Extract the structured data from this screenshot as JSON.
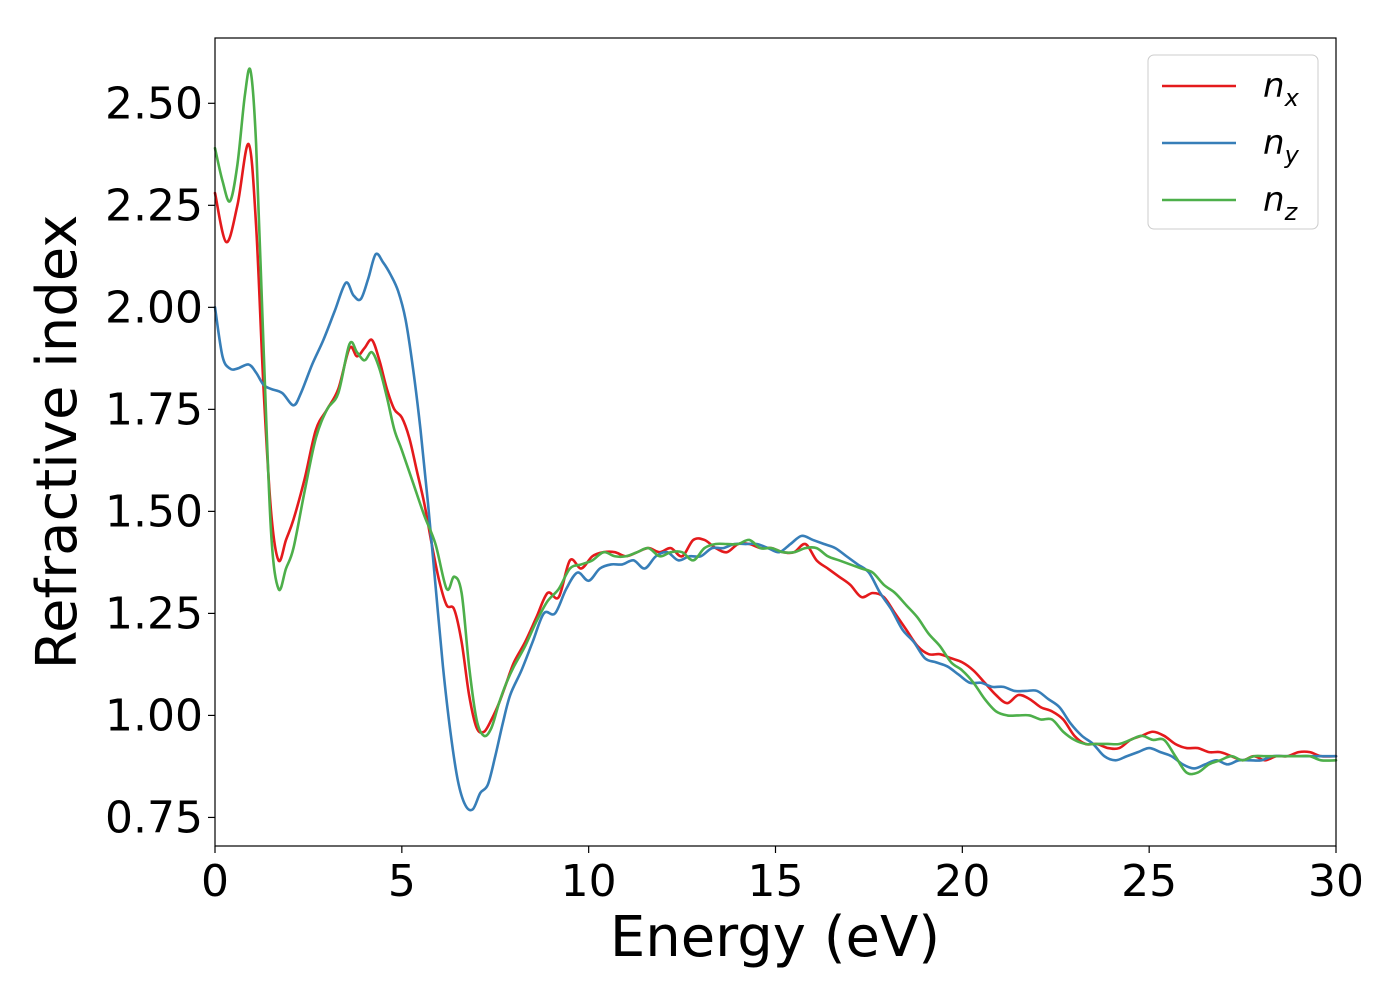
{
  "chart_data": {
    "type": "line",
    "xlabel": "Energy (eV)",
    "ylabel": "Refractive index",
    "xlim": [
      0,
      30
    ],
    "ylim": [
      0.68,
      2.66
    ],
    "xticks": [
      0,
      5,
      10,
      15,
      20,
      25,
      30
    ],
    "xtick_labels": [
      "0",
      "5",
      "10",
      "15",
      "20",
      "25",
      "30"
    ],
    "yticks": [
      0.75,
      1.0,
      1.25,
      1.5,
      1.75,
      2.0,
      2.25,
      2.5
    ],
    "ytick_labels": [
      "0.75",
      "1.00",
      "1.25",
      "1.50",
      "1.75",
      "2.00",
      "2.25",
      "2.50"
    ],
    "grid": false,
    "legend_position": "top-right",
    "series": [
      {
        "name": "n",
        "subscript": "x",
        "color": "#e41a1c",
        "x": [
          0,
          0.3,
          0.6,
          0.9,
          1.1,
          1.3,
          1.5,
          1.7,
          1.9,
          2.1,
          2.4,
          2.7,
          3.0,
          3.3,
          3.6,
          3.8,
          4.0,
          4.2,
          4.4,
          4.6,
          4.8,
          5.0,
          5.2,
          5.4,
          5.6,
          5.8,
          6.0,
          6.2,
          6.4,
          6.6,
          6.8,
          7.0,
          7.2,
          7.4,
          7.6,
          7.8,
          8.0,
          8.3,
          8.6,
          8.9,
          9.2,
          9.5,
          9.8,
          10.1,
          10.4,
          10.7,
          11.0,
          11.3,
          11.6,
          11.9,
          12.2,
          12.5,
          12.8,
          13.1,
          13.4,
          13.7,
          14.0,
          14.3,
          14.6,
          14.9,
          15.2,
          15.5,
          15.8,
          16.1,
          16.4,
          16.7,
          17.0,
          17.3,
          17.6,
          17.9,
          18.2,
          18.5,
          18.8,
          19.1,
          19.4,
          19.7,
          20.0,
          20.3,
          20.6,
          20.9,
          21.2,
          21.5,
          21.8,
          22.1,
          22.4,
          22.7,
          23.0,
          23.3,
          23.6,
          23.9,
          24.2,
          24.5,
          24.8,
          25.1,
          25.4,
          25.7,
          26.0,
          26.3,
          26.6,
          26.9,
          27.2,
          27.5,
          27.8,
          28.1,
          28.4,
          28.7,
          29.0,
          29.3,
          29.6,
          30.0
        ],
        "values": [
          2.28,
          2.16,
          2.25,
          2.4,
          2.2,
          1.8,
          1.5,
          1.38,
          1.43,
          1.48,
          1.58,
          1.7,
          1.75,
          1.8,
          1.9,
          1.88,
          1.9,
          1.92,
          1.87,
          1.8,
          1.75,
          1.73,
          1.68,
          1.6,
          1.52,
          1.42,
          1.33,
          1.27,
          1.26,
          1.18,
          1.05,
          0.97,
          0.96,
          0.99,
          1.03,
          1.08,
          1.13,
          1.18,
          1.24,
          1.3,
          1.29,
          1.38,
          1.36,
          1.39,
          1.4,
          1.4,
          1.39,
          1.4,
          1.41,
          1.4,
          1.41,
          1.39,
          1.43,
          1.43,
          1.41,
          1.4,
          1.42,
          1.42,
          1.41,
          1.41,
          1.4,
          1.4,
          1.42,
          1.38,
          1.36,
          1.34,
          1.32,
          1.29,
          1.3,
          1.29,
          1.25,
          1.21,
          1.17,
          1.15,
          1.15,
          1.14,
          1.13,
          1.11,
          1.08,
          1.05,
          1.03,
          1.05,
          1.04,
          1.02,
          1.01,
          0.99,
          0.95,
          0.93,
          0.93,
          0.92,
          0.92,
          0.94,
          0.95,
          0.96,
          0.95,
          0.93,
          0.92,
          0.92,
          0.91,
          0.91,
          0.9,
          0.89,
          0.9,
          0.89,
          0.9,
          0.9,
          0.91,
          0.91,
          0.9,
          0.9
        ]
      },
      {
        "name": "n",
        "subscript": "y",
        "color": "#377eb8",
        "x": [
          0,
          0.2,
          0.4,
          0.6,
          0.9,
          1.1,
          1.3,
          1.5,
          1.8,
          2.1,
          2.3,
          2.6,
          2.9,
          3.2,
          3.5,
          3.7,
          3.9,
          4.1,
          4.3,
          4.5,
          4.7,
          4.9,
          5.1,
          5.3,
          5.5,
          5.7,
          5.9,
          6.1,
          6.3,
          6.5,
          6.7,
          6.9,
          7.1,
          7.3,
          7.5,
          7.7,
          7.9,
          8.2,
          8.5,
          8.8,
          9.1,
          9.4,
          9.7,
          10.0,
          10.3,
          10.6,
          10.9,
          11.2,
          11.5,
          11.8,
          12.1,
          12.4,
          12.7,
          13.0,
          13.3,
          13.6,
          13.9,
          14.2,
          14.5,
          14.8,
          15.1,
          15.4,
          15.7,
          16.0,
          16.3,
          16.6,
          16.9,
          17.2,
          17.5,
          17.8,
          18.1,
          18.4,
          18.7,
          19.0,
          19.3,
          19.6,
          19.9,
          20.2,
          20.5,
          20.8,
          21.1,
          21.4,
          21.7,
          22.0,
          22.3,
          22.6,
          22.9,
          23.2,
          23.5,
          23.8,
          24.1,
          24.4,
          24.7,
          25.0,
          25.3,
          25.6,
          25.9,
          26.2,
          26.5,
          26.8,
          27.1,
          27.4,
          27.7,
          28.0,
          28.3,
          28.6,
          28.9,
          29.2,
          29.5,
          30.0
        ],
        "values": [
          2.0,
          1.88,
          1.85,
          1.85,
          1.86,
          1.84,
          1.81,
          1.8,
          1.79,
          1.76,
          1.79,
          1.86,
          1.92,
          1.99,
          2.06,
          2.03,
          2.02,
          2.07,
          2.13,
          2.11,
          2.08,
          2.04,
          1.97,
          1.85,
          1.7,
          1.52,
          1.32,
          1.12,
          0.96,
          0.84,
          0.78,
          0.77,
          0.81,
          0.83,
          0.9,
          0.98,
          1.05,
          1.11,
          1.18,
          1.25,
          1.25,
          1.31,
          1.35,
          1.33,
          1.36,
          1.37,
          1.37,
          1.38,
          1.36,
          1.39,
          1.4,
          1.38,
          1.39,
          1.39,
          1.41,
          1.41,
          1.42,
          1.42,
          1.42,
          1.41,
          1.4,
          1.42,
          1.44,
          1.43,
          1.42,
          1.41,
          1.39,
          1.37,
          1.35,
          1.3,
          1.26,
          1.21,
          1.18,
          1.14,
          1.13,
          1.12,
          1.1,
          1.08,
          1.08,
          1.07,
          1.07,
          1.06,
          1.06,
          1.06,
          1.04,
          1.02,
          0.98,
          0.95,
          0.93,
          0.9,
          0.89,
          0.9,
          0.91,
          0.92,
          0.91,
          0.9,
          0.88,
          0.87,
          0.88,
          0.89,
          0.88,
          0.89,
          0.89,
          0.89,
          0.9,
          0.9,
          0.9,
          0.9,
          0.9,
          0.9
        ]
      },
      {
        "name": "n",
        "subscript": "z",
        "color": "#4daf4a",
        "x": [
          0,
          0.2,
          0.4,
          0.6,
          0.8,
          0.95,
          1.1,
          1.3,
          1.5,
          1.7,
          1.9,
          2.1,
          2.4,
          2.7,
          3.0,
          3.3,
          3.6,
          3.8,
          4.0,
          4.2,
          4.4,
          4.6,
          4.8,
          5.0,
          5.3,
          5.6,
          5.9,
          6.2,
          6.4,
          6.6,
          6.8,
          7.0,
          7.2,
          7.4,
          7.6,
          7.8,
          8.0,
          8.3,
          8.6,
          8.9,
          9.2,
          9.5,
          9.8,
          10.1,
          10.4,
          10.7,
          11.0,
          11.3,
          11.6,
          11.9,
          12.2,
          12.5,
          12.8,
          13.1,
          13.4,
          13.7,
          14.0,
          14.3,
          14.6,
          14.9,
          15.2,
          15.5,
          15.8,
          16.1,
          16.4,
          16.7,
          17.0,
          17.3,
          17.6,
          17.9,
          18.2,
          18.5,
          18.8,
          19.1,
          19.4,
          19.7,
          20.0,
          20.3,
          20.6,
          20.9,
          21.2,
          21.5,
          21.8,
          22.1,
          22.4,
          22.7,
          23.0,
          23.3,
          23.6,
          23.9,
          24.2,
          24.5,
          24.8,
          25.1,
          25.4,
          25.7,
          26.0,
          26.3,
          26.6,
          26.9,
          27.2,
          27.5,
          27.8,
          28.1,
          28.4,
          28.7,
          29.0,
          29.3,
          29.6,
          30.0
        ],
        "values": [
          2.39,
          2.31,
          2.26,
          2.35,
          2.52,
          2.58,
          2.4,
          1.9,
          1.45,
          1.31,
          1.36,
          1.41,
          1.55,
          1.68,
          1.75,
          1.79,
          1.91,
          1.89,
          1.87,
          1.89,
          1.85,
          1.78,
          1.7,
          1.65,
          1.57,
          1.49,
          1.42,
          1.31,
          1.34,
          1.3,
          1.12,
          0.99,
          0.95,
          0.97,
          1.03,
          1.08,
          1.12,
          1.17,
          1.23,
          1.28,
          1.31,
          1.36,
          1.37,
          1.38,
          1.4,
          1.39,
          1.39,
          1.4,
          1.41,
          1.39,
          1.4,
          1.4,
          1.38,
          1.41,
          1.42,
          1.42,
          1.42,
          1.43,
          1.41,
          1.41,
          1.4,
          1.4,
          1.41,
          1.41,
          1.39,
          1.38,
          1.37,
          1.36,
          1.35,
          1.32,
          1.3,
          1.27,
          1.24,
          1.2,
          1.17,
          1.13,
          1.11,
          1.08,
          1.04,
          1.01,
          1.0,
          1.0,
          1.0,
          0.99,
          0.99,
          0.96,
          0.94,
          0.93,
          0.93,
          0.93,
          0.93,
          0.94,
          0.95,
          0.94,
          0.94,
          0.9,
          0.86,
          0.86,
          0.88,
          0.89,
          0.9,
          0.89,
          0.9,
          0.9,
          0.9,
          0.9,
          0.9,
          0.9,
          0.89,
          0.89
        ]
      }
    ]
  }
}
